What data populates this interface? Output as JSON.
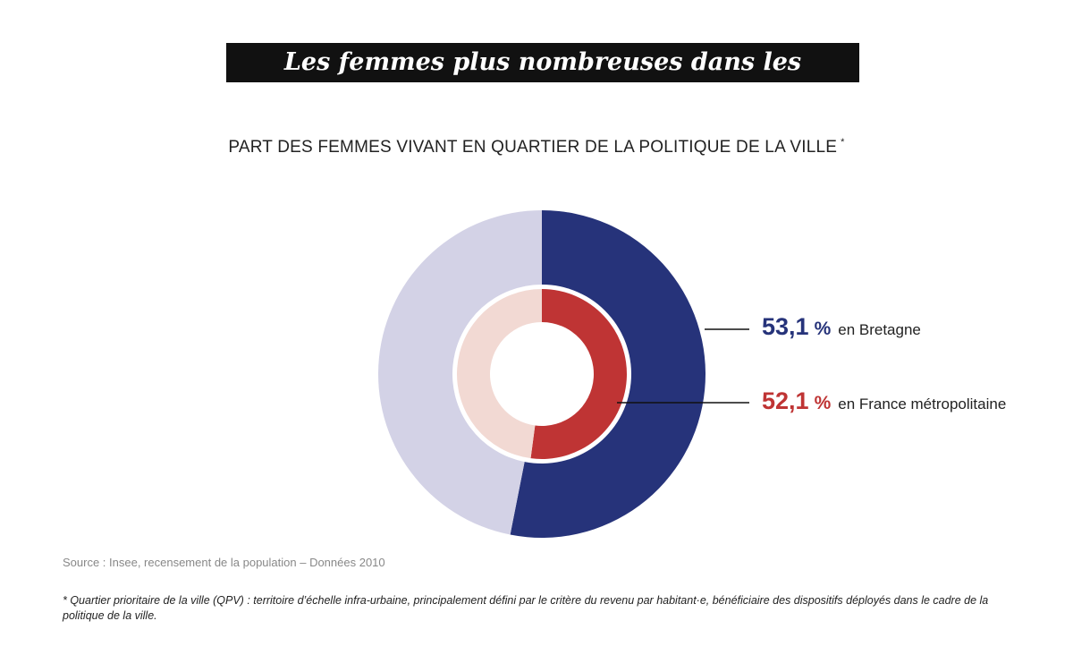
{
  "title": "Les femmes plus nombreuses dans les quartiers",
  "chart_data": {
    "type": "pie",
    "variant": "nested-donut",
    "title": "PART DES FEMMES VIVANT EN QUARTIER DE LA POLITIQUE DE LA VILLE",
    "title_marker": "*",
    "series": [
      {
        "name": "en Bretagne",
        "value": 53.1,
        "value_label": "53,1",
        "unit": "%",
        "ring": "outer",
        "color": "#26337a",
        "remainder_color": "#d3d2e6"
      },
      {
        "name": "en France métropolitaine",
        "value": 52.1,
        "value_label": "52,1",
        "unit": "%",
        "ring": "inner",
        "color": "#bf3434",
        "remainder_color": "#f2d9d3"
      }
    ]
  },
  "source": "Source : Insee, recensement de la population – Données 2010",
  "footnote": "* Quartier prioritaire de la ville (QPV) : territoire d’échelle infra-urbaine, principalement défini par le critère du revenu par habitant·e, bénéficiaire des dispositifs déployés dans le cadre de la politique de la ville."
}
